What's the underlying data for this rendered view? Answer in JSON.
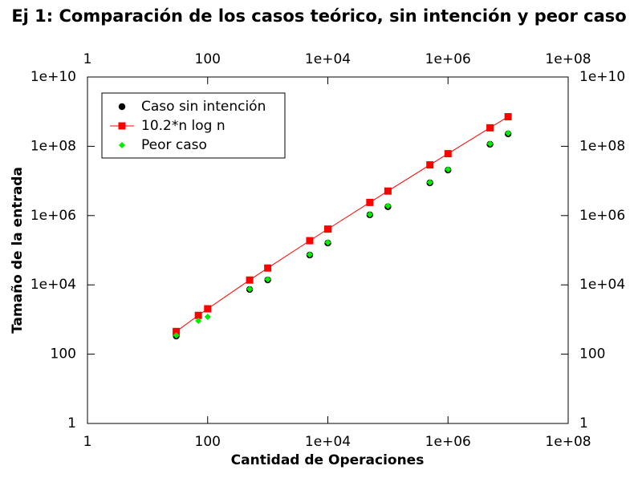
{
  "chart_data": {
    "type": "scatter",
    "title": "Ej 1: Comparación de los casos teórico, sin intención y peor caso",
    "x_label": "Cantidad de Operaciones",
    "y_label": "Tamaño de la entrada",
    "x": [
      30,
      70,
      100,
      500,
      1000,
      5000,
      10000,
      50000,
      100000,
      500000,
      1000000,
      5000000,
      10000000
    ],
    "series": [
      {
        "name": "Caso sin intención",
        "color": "#000000",
        "mode": "points",
        "marker": "circle",
        "values": [
          333,
          null,
          null,
          7370,
          13900,
          72700,
          161000,
          1050000,
          1800000,
          8800000,
          20600000,
          114000000,
          228000000
        ]
      },
      {
        "name": "10.2*n log n",
        "color": "#ff0000",
        "mode": "linespoints",
        "marker": "square",
        "values": [
          452,
          1317,
          2040,
          13767,
          30600,
          188667,
          408000,
          2397000,
          5100000,
          29060000,
          61200000,
          341600000,
          714000000
        ]
      },
      {
        "name": "Peor caso",
        "color": "#00ee00",
        "mode": "points",
        "marker": "diamond",
        "values": [
          350,
          920,
          1200,
          7600,
          14500,
          75000,
          168000,
          1080000,
          1900000,
          9100000,
          21500000,
          118000000,
          240000000
        ]
      }
    ],
    "log_x": true,
    "log_y": true,
    "xlim": [
      1,
      100000000
    ],
    "xticks": [
      1,
      100,
      {
        "value": 10000,
        "label": "1e+04"
      },
      {
        "value": 1000000,
        "label": "1e+06"
      },
      {
        "value": 100000000,
        "label": "1e+08"
      }
    ],
    "ylim": [
      1,
      10000000000
    ],
    "yticks": [
      1,
      100,
      {
        "value": 10000,
        "label": "1e+04"
      },
      {
        "value": 1000000,
        "label": "1e+06"
      },
      {
        "value": 100000000,
        "label": "1e+08"
      },
      {
        "value": 10000000000,
        "label": "1e+10"
      }
    ],
    "mirror_axes": true,
    "legend": "top-left"
  }
}
